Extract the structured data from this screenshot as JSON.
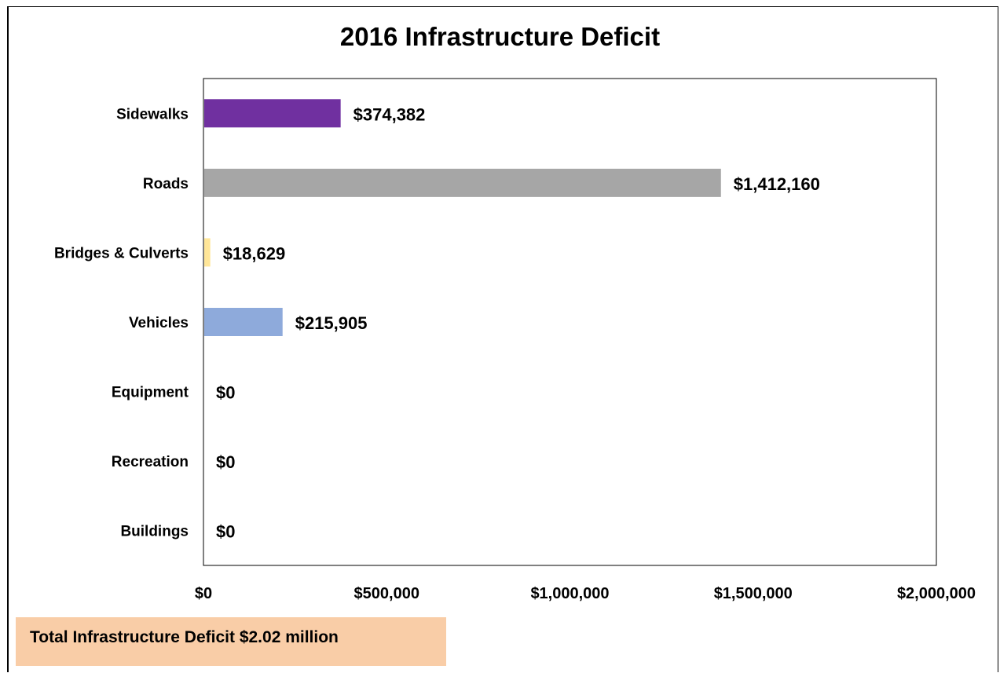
{
  "chart_data": {
    "type": "bar",
    "orientation": "horizontal",
    "title": "2016 Infrastructure Deficit",
    "categories": [
      "Sidewalks",
      "Roads",
      "Bridges & Culverts",
      "Vehicles",
      "Equipment",
      "Recreation",
      "Buildings"
    ],
    "values": [
      374382,
      1412160,
      18629,
      215905,
      0,
      0,
      0
    ],
    "value_labels": [
      "$374,382",
      "$1,412,160",
      "$18,629",
      "$215,905",
      "$0",
      "$0",
      "$0"
    ],
    "colors": [
      "#7030a0",
      "#a6a6a6",
      "#ffe699",
      "#8eaadb",
      "#ffffff",
      "#ffffff",
      "#ffffff"
    ],
    "xlim": [
      0,
      2000000
    ],
    "xticks": [
      0,
      500000,
      1000000,
      1500000,
      2000000
    ],
    "xtick_labels": [
      "$0",
      "$500,000",
      "$1,000,000",
      "$1,500,000",
      "$2,000,000"
    ],
    "xlabel": "",
    "ylabel": "",
    "grid": false,
    "legend": false
  },
  "footer": {
    "label": "Total Infrastructure Deficit $2.02 million",
    "background": "#f9cda7"
  }
}
